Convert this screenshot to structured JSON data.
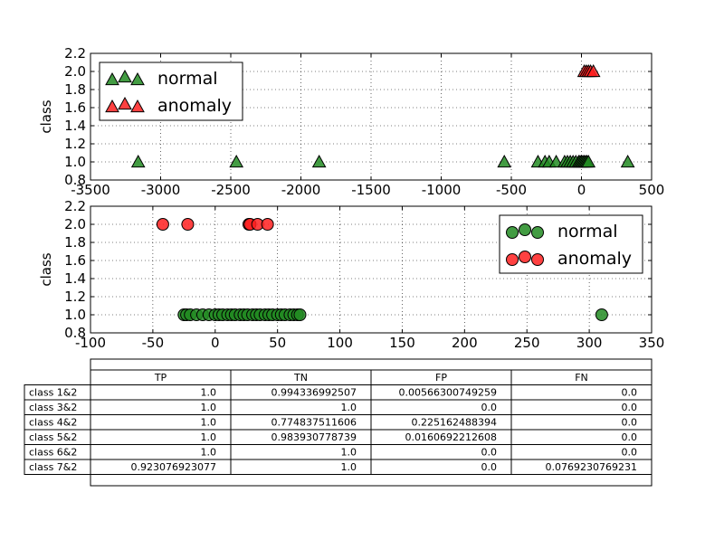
{
  "chart_data": [
    {
      "type": "scatter",
      "ylabel": "class",
      "xlim": [
        -3500,
        500
      ],
      "ylim": [
        0.8,
        2.2
      ],
      "xticks": [
        "-3500",
        "-3000",
        "-2500",
        "-2000",
        "-1500",
        "-1000",
        "-500",
        "0",
        "500"
      ],
      "yticks": [
        "0.8",
        "1.0",
        "1.2",
        "1.4",
        "1.6",
        "1.8",
        "2.0",
        "2.2"
      ],
      "grid": true,
      "legend_position": "upper-left",
      "marker": "triangle",
      "series": [
        {
          "name": "normal",
          "color": "#228b22",
          "x": [
            -3160,
            -2460,
            -1870,
            -550,
            -310,
            -260,
            -230,
            -180,
            -120,
            -100,
            -80,
            -60,
            -40,
            -20,
            -10,
            0,
            10,
            20,
            30,
            40,
            50,
            330
          ],
          "y": [
            1,
            1,
            1,
            1,
            1,
            1,
            1,
            1,
            1,
            1,
            1,
            1,
            1,
            1,
            1,
            1,
            1,
            1,
            1,
            1,
            1,
            1
          ]
        },
        {
          "name": "anomaly",
          "color": "#ff2020",
          "x": [
            20,
            35,
            50,
            65,
            85
          ],
          "y": [
            2,
            2,
            2,
            2,
            2
          ]
        }
      ]
    },
    {
      "type": "scatter",
      "ylabel": "class",
      "xlim": [
        -100,
        350
      ],
      "ylim": [
        0.8,
        2.2
      ],
      "xticks": [
        "-100",
        "-50",
        "0",
        "50",
        "100",
        "150",
        "200",
        "250",
        "300",
        "350"
      ],
      "yticks": [
        "0.8",
        "1.0",
        "1.2",
        "1.4",
        "1.6",
        "1.8",
        "2.0",
        "2.2"
      ],
      "grid": true,
      "legend_position": "upper-right",
      "marker": "circle",
      "series": [
        {
          "name": "normal",
          "color": "#228b22",
          "x": [
            -25,
            -23,
            -20,
            -15,
            -10,
            -5,
            0,
            3,
            6,
            10,
            13,
            16,
            20,
            23,
            26,
            30,
            33,
            36,
            40,
            43,
            46,
            50,
            53,
            56,
            60,
            63,
            66,
            68,
            310
          ],
          "y": [
            1,
            1,
            1,
            1,
            1,
            1,
            1,
            1,
            1,
            1,
            1,
            1,
            1,
            1,
            1,
            1,
            1,
            1,
            1,
            1,
            1,
            1,
            1,
            1,
            1,
            1,
            1,
            1,
            1
          ]
        },
        {
          "name": "anomaly",
          "color": "#ff2020",
          "x": [
            -42,
            -22,
            27,
            28,
            34,
            42
          ],
          "y": [
            2,
            2,
            2,
            2,
            2,
            2
          ]
        }
      ]
    },
    {
      "type": "table",
      "columns": [
        "TP",
        "TN",
        "FP",
        "FN"
      ],
      "rows": [
        {
          "label": "class 1&2",
          "cells": [
            "1.0",
            "0.994336992507",
            "0.00566300749259",
            "0.0"
          ]
        },
        {
          "label": "class 3&2",
          "cells": [
            "1.0",
            "1.0",
            "0.0",
            "0.0"
          ]
        },
        {
          "label": "class 4&2",
          "cells": [
            "1.0",
            "0.774837511606",
            "0.225162488394",
            "0.0"
          ]
        },
        {
          "label": "class 5&2",
          "cells": [
            "1.0",
            "0.983930778739",
            "0.0160692212608",
            "0.0"
          ]
        },
        {
          "label": "class 6&2",
          "cells": [
            "1.0",
            "1.0",
            "0.0",
            "0.0"
          ]
        },
        {
          "label": "class 7&2",
          "cells": [
            "0.923076923077",
            "1.0",
            "0.0",
            "0.0769230769231"
          ]
        }
      ]
    }
  ]
}
